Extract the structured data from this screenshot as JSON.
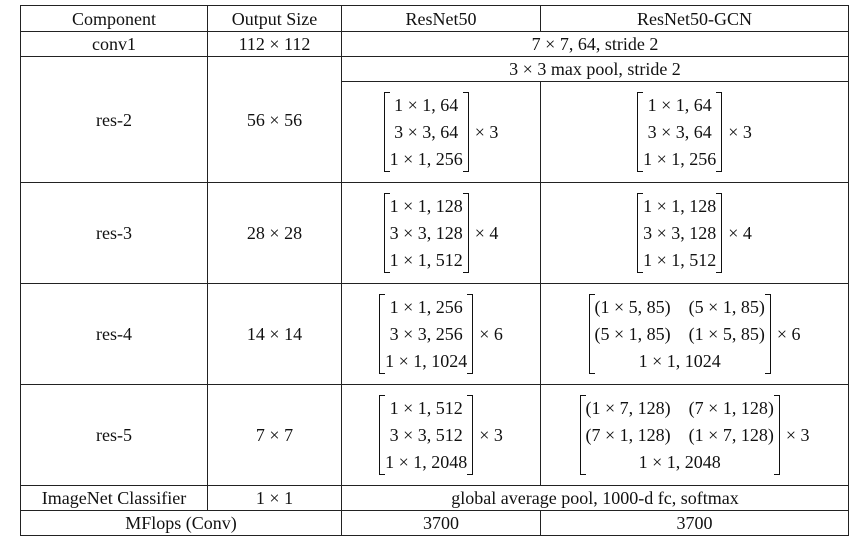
{
  "header": {
    "component": "Component",
    "output_size": "Output Size",
    "resnet50": "ResNet50",
    "resnet50_gcn": "ResNet50-GCN"
  },
  "conv1": {
    "component": "conv1",
    "output": "112 × 112",
    "spec": "7 × 7, 64, stride 2"
  },
  "maxpool": {
    "spec": "3 × 3 max pool, stride 2"
  },
  "res2": {
    "component": "res-2",
    "output": "56 × 56",
    "r50": {
      "rows": [
        "1 × 1, 64",
        "3 × 3, 64",
        "1 × 1, 256"
      ],
      "mult": "× 3"
    },
    "gcn": {
      "rows": [
        "1 × 1, 64",
        "3 × 3, 64",
        "1 × 1, 256"
      ],
      "mult": "× 3"
    }
  },
  "res3": {
    "component": "res-3",
    "output": "28 × 28",
    "r50": {
      "rows": [
        "1 × 1, 128",
        "3 × 3, 128",
        "1 × 1, 512"
      ],
      "mult": "× 4"
    },
    "gcn": {
      "rows": [
        "1 × 1, 128",
        "3 × 3, 128",
        "1 × 1, 512"
      ],
      "mult": "× 4"
    }
  },
  "res4": {
    "component": "res-4",
    "output": "14 × 14",
    "r50": {
      "rows": [
        "1 × 1, 256",
        "3 × 3, 256",
        "1 × 1, 1024"
      ],
      "mult": "× 6"
    },
    "gcn": {
      "row1a": "(1 × 5, 85)",
      "row1b": "(5 × 1, 85)",
      "row2a": "(5 × 1, 85)",
      "row2b": "(1 × 5, 85)",
      "row3": "1 × 1, 1024",
      "mult": "× 6"
    }
  },
  "res5": {
    "component": "res-5",
    "output": "7 × 7",
    "r50": {
      "rows": [
        "1 × 1, 512",
        "3 × 3, 512",
        "1 × 1, 2048"
      ],
      "mult": "× 3"
    },
    "gcn": {
      "row1a": "(1 × 7, 128)",
      "row1b": "(7 × 1, 128)",
      "row2a": "(7 × 1, 128)",
      "row2b": "(1 × 7, 128)",
      "row3": "1 × 1, 2048",
      "mult": "× 3"
    }
  },
  "classifier": {
    "component": "ImageNet Classifier",
    "output": "1 × 1",
    "spec": "global average pool, 1000-d fc, softmax"
  },
  "mflops": {
    "component": "MFlops (Conv)",
    "r50": "3700",
    "gcn": "3700"
  }
}
